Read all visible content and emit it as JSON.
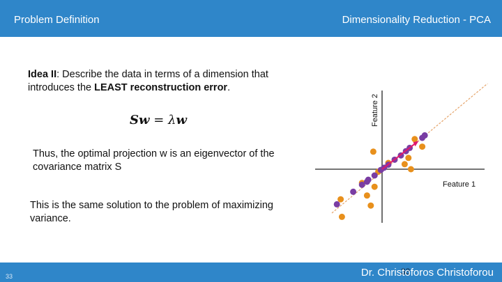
{
  "header": {
    "left_title": "Problem Definition",
    "right_title": "Dimensionality Reduction - PCA"
  },
  "content": {
    "idea_label": "Idea II",
    "idea_text_1": ": Describe the data in terms of a dimension that introduces the ",
    "idea_bold": "LEAST reconstruction error",
    "idea_end": ".",
    "formula_S": "Sw",
    "formula_eq": " = λ",
    "formula_w": "w",
    "thus_text": "Thus, the optimal projection w is an eigenvector of the covariance matrix S",
    "same_text": "This is the same solution to the problem of maximizing variance."
  },
  "footer": {
    "author": "Dr. Christoforos Christoforou",
    "slide_number_left": "33",
    "slide_number_center": "33"
  },
  "chart_data": {
    "type": "scatter",
    "xlabel": "Feature 1",
    "ylabel": "Feature 2",
    "colors": {
      "original": "#e8901c",
      "projected": "#7a3da3",
      "line": "#e5a46a",
      "arrow": "#e0186c",
      "axis": "#222222"
    },
    "original_points": [
      [
        1.3,
        1.2
      ],
      [
        1.6,
        0.9
      ],
      [
        1.05,
        0.45
      ],
      [
        0.9,
        0.2
      ],
      [
        0.25,
        0.25
      ],
      [
        -0.35,
        0.7
      ],
      [
        -0.15,
        -0.1
      ],
      [
        -0.3,
        -0.7
      ],
      [
        -0.8,
        -0.55
      ],
      [
        -0.6,
        -1.05
      ],
      [
        -0.45,
        -1.45
      ],
      [
        -1.65,
        -1.2
      ],
      [
        -1.6,
        -1.9
      ],
      [
        1.15,
        0.0
      ]
    ],
    "projected_points": [
      [
        1.7,
        1.35
      ],
      [
        1.6,
        1.25
      ],
      [
        1.1,
        0.85
      ],
      [
        0.95,
        0.72
      ],
      [
        0.75,
        0.55
      ],
      [
        0.5,
        0.38
      ],
      [
        0.25,
        0.18
      ],
      [
        0.08,
        0.06
      ],
      [
        -0.05,
        -0.03
      ],
      [
        -0.3,
        -0.25
      ],
      [
        -0.55,
        -0.42
      ],
      [
        -0.6,
        -0.5
      ],
      [
        -0.8,
        -0.62
      ],
      [
        -1.15,
        -0.9
      ],
      [
        -1.8,
        -1.4
      ]
    ],
    "axis_range": [
      -2,
      2
    ]
  }
}
